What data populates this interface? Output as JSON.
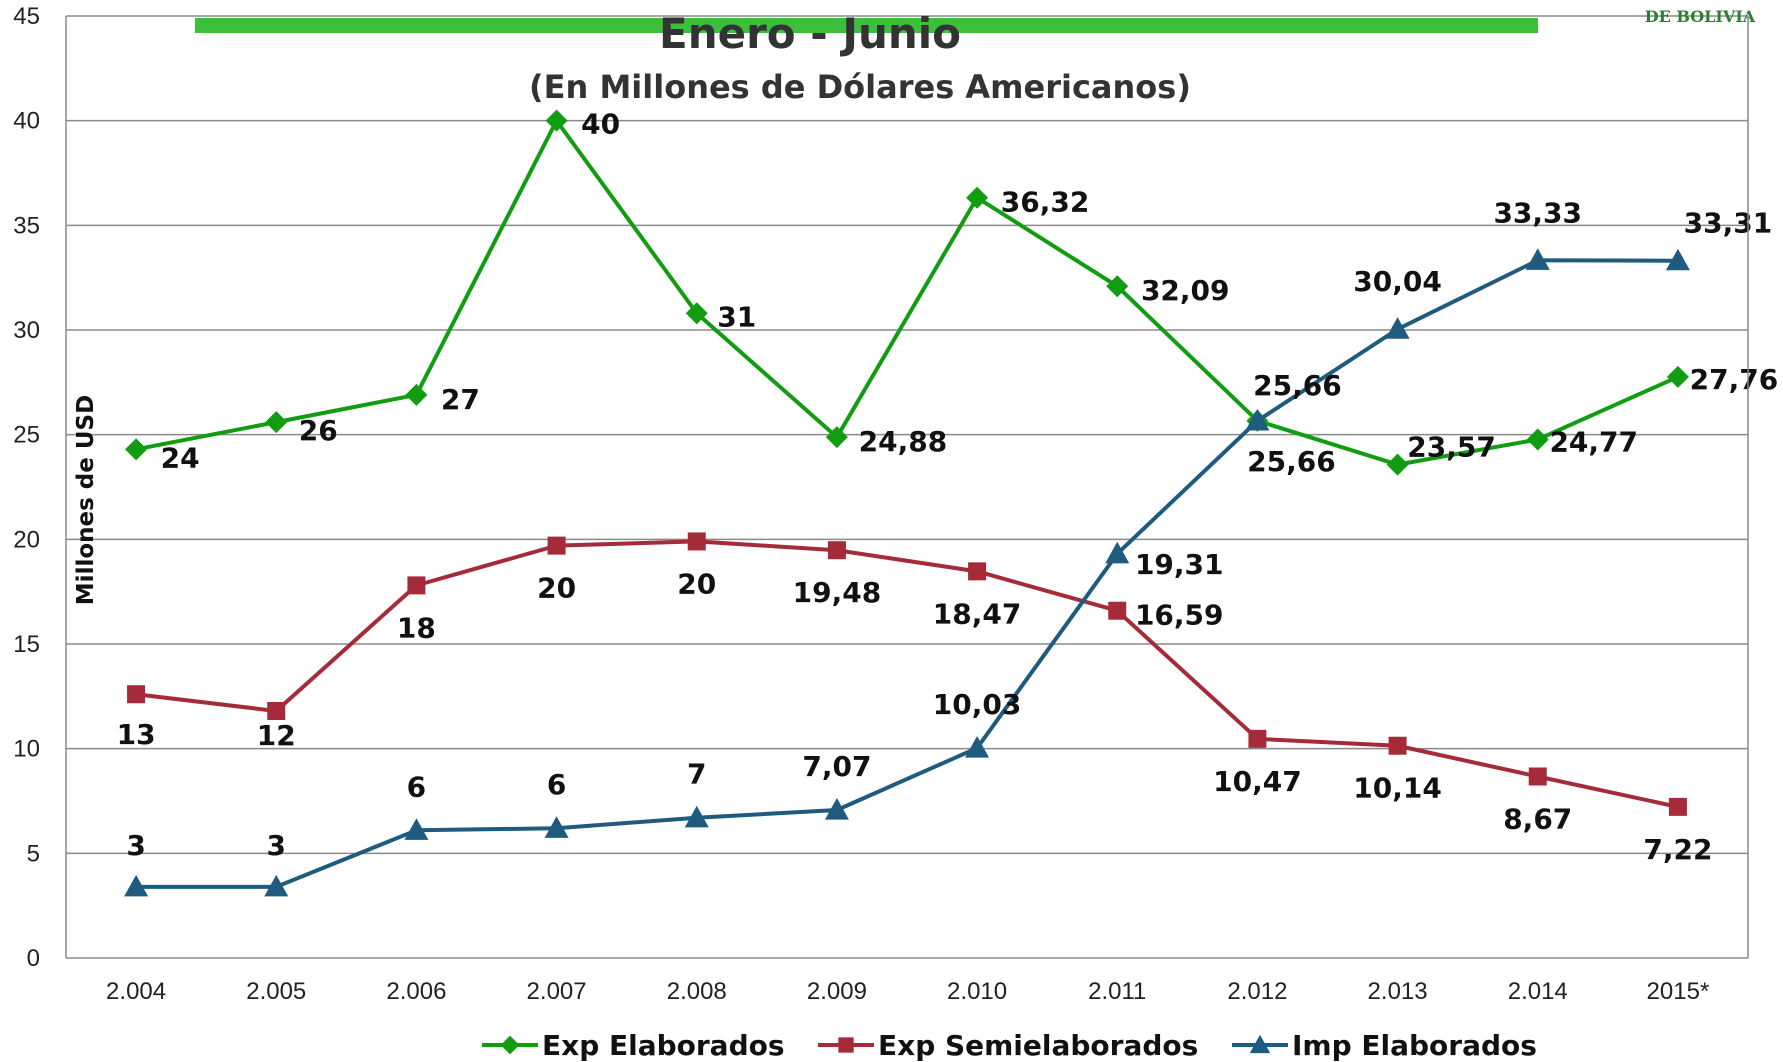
{
  "chart_data": {
    "type": "line",
    "title": "Enero - Junio",
    "subtitle": "(En Millones de Dólares Americanos)",
    "ylabel": "Millones de USD",
    "xlabel": "",
    "ylim": [
      0,
      45
    ],
    "yticks": [
      0,
      5,
      10,
      15,
      20,
      25,
      30,
      35,
      40,
      45
    ],
    "grid": true,
    "legend_position": "bottom",
    "categories": [
      "2.004",
      "2.005",
      "2.006",
      "2.007",
      "2.008",
      "2.009",
      "2.010",
      "2.011",
      "2.012",
      "2.013",
      "2.014",
      "2015*"
    ],
    "series": [
      {
        "name": "Exp Elaborados",
        "color": "#129C12",
        "marker": "diamond",
        "values": [
          24.3,
          25.6,
          26.9,
          40.0,
          30.8,
          24.88,
          36.32,
          32.09,
          25.66,
          23.57,
          24.77,
          27.76
        ],
        "labels": [
          "24",
          "26",
          "27",
          "40",
          "31",
          "24,88",
          "36,32",
          "32,09",
          "25,66",
          "23,57",
          "24,77",
          "27,76"
        ]
      },
      {
        "name": "Exp Semielaborados",
        "color": "#A52A3A",
        "marker": "square",
        "values": [
          12.6,
          11.8,
          17.8,
          19.7,
          19.9,
          19.48,
          18.47,
          16.59,
          10.47,
          10.14,
          8.67,
          7.22
        ],
        "labels": [
          "13",
          "12",
          "18",
          "20",
          "20",
          "19,48",
          "18,47",
          "16,59",
          "10,47",
          "10,14",
          "8,67",
          "7,22"
        ]
      },
      {
        "name": "Imp Elaborados",
        "color": "#1F5B7E",
        "marker": "triangle",
        "values": [
          3.4,
          3.4,
          6.1,
          6.2,
          6.7,
          7.07,
          10.03,
          19.31,
          25.66,
          30.04,
          33.33,
          33.31
        ],
        "labels": [
          "3",
          "3",
          "6",
          "6",
          "7",
          "7,07",
          "10,03",
          "19,31",
          "25,66",
          "30,04",
          "33,33",
          "33,31"
        ]
      }
    ]
  },
  "header_bar_color": "#3DBE3D",
  "logo": {
    "text": "DE BOLIVIA"
  }
}
